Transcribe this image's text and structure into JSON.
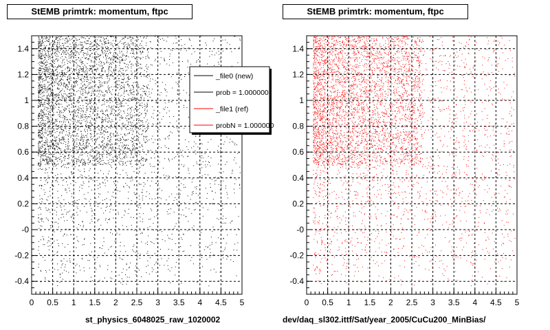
{
  "chart_data": [
    {
      "type": "scatter",
      "title": "StEMB primtrk: momentum, ftpc",
      "xlabel": "st_physics_6048025_raw_1020002",
      "ylabel": "",
      "xlim": [
        0,
        5
      ],
      "ylim": [
        -0.5,
        1.5
      ],
      "xticks": [
        "0",
        "0.5",
        "1",
        "1.5",
        "2",
        "2.5",
        "3",
        "3.5",
        "4",
        "4.5",
        "5"
      ],
      "yticks": [
        "-0.4",
        "-0.2",
        "-0",
        "0.2",
        "0.4",
        "0.6",
        "0.8",
        "1",
        "1.2",
        "1.4"
      ],
      "grid": true,
      "marker_color": "#000000",
      "legend_position": "top-right",
      "legend": [
        {
          "label": "_file0 (new)",
          "color": "#000000"
        },
        {
          "label": "prob = 1.000000",
          "color": "#000000"
        },
        {
          "label": "_file1 (ref)",
          "color": "#ff0000"
        },
        {
          "label": "probN = 1.000000",
          "color": "#ff0000"
        }
      ],
      "density_note": "dense points concentrated at x 0.2-2.5 with y 0.5-1.5, sparse elsewhere"
    },
    {
      "type": "scatter",
      "title": "StEMB primtrk: momentum, ftpc",
      "xlabel": "dev/daq_sl302.ittf/Sat/year_2005/CuCu200_MinBias/",
      "ylabel": "",
      "xlim": [
        0,
        5
      ],
      "ylim": [
        -0.5,
        1.5
      ],
      "xticks": [
        "0",
        "0.5",
        "1",
        "1.5",
        "2",
        "2.5",
        "3",
        "3.5",
        "4",
        "4.5",
        "5"
      ],
      "yticks": [
        "-0.4",
        "-0.2",
        "-0",
        "0.2",
        "0.4",
        "0.6",
        "0.8",
        "1",
        "1.2",
        "1.4"
      ],
      "grid": true,
      "marker_color": "#ff0000"
    }
  ]
}
